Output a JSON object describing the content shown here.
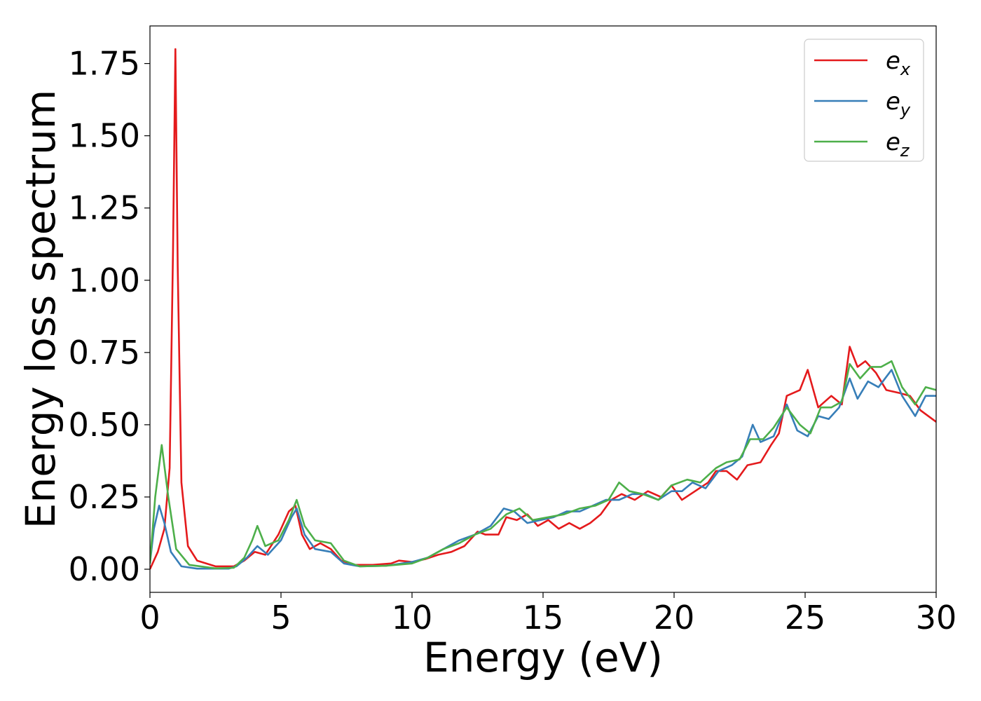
{
  "chart_data": {
    "type": "line",
    "xlabel": "Energy (eV)",
    "ylabel": "Energy loss spectrum",
    "xlim": [
      0,
      30
    ],
    "ylim": [
      -0.08,
      1.88
    ],
    "xticks": [
      0,
      5,
      10,
      15,
      20,
      25,
      30
    ],
    "xtick_labels": [
      "0",
      "5",
      "10",
      "15",
      "20",
      "25",
      "30"
    ],
    "yticks": [
      0.0,
      0.25,
      0.5,
      0.75,
      1.0,
      1.25,
      1.5,
      1.75
    ],
    "ytick_labels": [
      "0.00",
      "0.25",
      "0.50",
      "0.75",
      "1.00",
      "1.25",
      "1.50",
      "1.75"
    ],
    "grid": false,
    "legend_position": "top-right",
    "series": [
      {
        "name": "e",
        "subscript": "x",
        "color": "#e41a1c",
        "points": [
          [
            0,
            0.0
          ],
          [
            0.3,
            0.06
          ],
          [
            0.55,
            0.14
          ],
          [
            0.75,
            0.35
          ],
          [
            0.88,
            1.1
          ],
          [
            0.97,
            1.8
          ],
          [
            1.06,
            1.05
          ],
          [
            1.2,
            0.3
          ],
          [
            1.45,
            0.08
          ],
          [
            1.8,
            0.03
          ],
          [
            2.5,
            0.01
          ],
          [
            3.2,
            0.01
          ],
          [
            3.6,
            0.03
          ],
          [
            4.0,
            0.06
          ],
          [
            4.4,
            0.05
          ],
          [
            4.9,
            0.12
          ],
          [
            5.3,
            0.2
          ],
          [
            5.55,
            0.22
          ],
          [
            5.8,
            0.12
          ],
          [
            6.1,
            0.07
          ],
          [
            6.5,
            0.09
          ],
          [
            6.9,
            0.07
          ],
          [
            7.3,
            0.03
          ],
          [
            7.8,
            0.015
          ],
          [
            8.5,
            0.015
          ],
          [
            9.2,
            0.02
          ],
          [
            9.5,
            0.03
          ],
          [
            10.0,
            0.025
          ],
          [
            10.5,
            0.035
          ],
          [
            11.0,
            0.05
          ],
          [
            11.5,
            0.06
          ],
          [
            12.0,
            0.08
          ],
          [
            12.5,
            0.13
          ],
          [
            12.8,
            0.12
          ],
          [
            13.3,
            0.12
          ],
          [
            13.6,
            0.18
          ],
          [
            14.0,
            0.17
          ],
          [
            14.4,
            0.19
          ],
          [
            14.8,
            0.15
          ],
          [
            15.2,
            0.17
          ],
          [
            15.6,
            0.14
          ],
          [
            16.0,
            0.16
          ],
          [
            16.4,
            0.14
          ],
          [
            16.8,
            0.16
          ],
          [
            17.2,
            0.19
          ],
          [
            17.6,
            0.24
          ],
          [
            18.0,
            0.26
          ],
          [
            18.5,
            0.24
          ],
          [
            19.0,
            0.27
          ],
          [
            19.5,
            0.25
          ],
          [
            19.9,
            0.29
          ],
          [
            20.3,
            0.24
          ],
          [
            20.8,
            0.27
          ],
          [
            21.3,
            0.3
          ],
          [
            21.6,
            0.34
          ],
          [
            22.0,
            0.34
          ],
          [
            22.4,
            0.31
          ],
          [
            22.8,
            0.36
          ],
          [
            23.3,
            0.37
          ],
          [
            23.7,
            0.43
          ],
          [
            24.0,
            0.47
          ],
          [
            24.3,
            0.6
          ],
          [
            24.8,
            0.62
          ],
          [
            25.1,
            0.69
          ],
          [
            25.5,
            0.56
          ],
          [
            26.0,
            0.6
          ],
          [
            26.4,
            0.57
          ],
          [
            26.7,
            0.77
          ],
          [
            27.0,
            0.7
          ],
          [
            27.3,
            0.72
          ],
          [
            27.7,
            0.68
          ],
          [
            28.1,
            0.62
          ],
          [
            28.6,
            0.61
          ],
          [
            29.0,
            0.6
          ],
          [
            29.4,
            0.55
          ],
          [
            30.0,
            0.51
          ]
        ]
      },
      {
        "name": "e",
        "subscript": "y",
        "color": "#377eb8",
        "points": [
          [
            0,
            0.02
          ],
          [
            0.15,
            0.14
          ],
          [
            0.35,
            0.22
          ],
          [
            0.55,
            0.16
          ],
          [
            0.8,
            0.06
          ],
          [
            1.2,
            0.01
          ],
          [
            1.8,
            0.002
          ],
          [
            3.0,
            0.002
          ],
          [
            3.3,
            0.01
          ],
          [
            3.7,
            0.04
          ],
          [
            4.1,
            0.08
          ],
          [
            4.5,
            0.05
          ],
          [
            5.0,
            0.1
          ],
          [
            5.4,
            0.18
          ],
          [
            5.6,
            0.21
          ],
          [
            5.9,
            0.12
          ],
          [
            6.3,
            0.07
          ],
          [
            6.9,
            0.06
          ],
          [
            7.4,
            0.02
          ],
          [
            8.0,
            0.01
          ],
          [
            9.0,
            0.012
          ],
          [
            10.0,
            0.025
          ],
          [
            10.6,
            0.04
          ],
          [
            11.2,
            0.07
          ],
          [
            11.8,
            0.1
          ],
          [
            12.4,
            0.12
          ],
          [
            13.0,
            0.15
          ],
          [
            13.5,
            0.21
          ],
          [
            13.9,
            0.2
          ],
          [
            14.4,
            0.16
          ],
          [
            14.9,
            0.17
          ],
          [
            15.4,
            0.18
          ],
          [
            15.9,
            0.2
          ],
          [
            16.4,
            0.2
          ],
          [
            16.9,
            0.22
          ],
          [
            17.4,
            0.24
          ],
          [
            17.9,
            0.24
          ],
          [
            18.4,
            0.26
          ],
          [
            18.9,
            0.26
          ],
          [
            19.4,
            0.24
          ],
          [
            19.9,
            0.27
          ],
          [
            20.3,
            0.27
          ],
          [
            20.7,
            0.3
          ],
          [
            21.2,
            0.28
          ],
          [
            21.7,
            0.34
          ],
          [
            22.2,
            0.36
          ],
          [
            22.6,
            0.39
          ],
          [
            23.0,
            0.5
          ],
          [
            23.3,
            0.44
          ],
          [
            23.8,
            0.46
          ],
          [
            24.3,
            0.57
          ],
          [
            24.7,
            0.48
          ],
          [
            25.1,
            0.46
          ],
          [
            25.5,
            0.53
          ],
          [
            25.9,
            0.52
          ],
          [
            26.3,
            0.56
          ],
          [
            26.7,
            0.66
          ],
          [
            27.0,
            0.59
          ],
          [
            27.4,
            0.65
          ],
          [
            27.8,
            0.63
          ],
          [
            28.3,
            0.69
          ],
          [
            28.7,
            0.6
          ],
          [
            29.2,
            0.53
          ],
          [
            29.6,
            0.6
          ],
          [
            30.0,
            0.6
          ]
        ]
      },
      {
        "name": "e",
        "subscript": "z",
        "color": "#4daf4a",
        "points": [
          [
            0,
            0.02
          ],
          [
            0.2,
            0.25
          ],
          [
            0.45,
            0.43
          ],
          [
            0.7,
            0.25
          ],
          [
            1.0,
            0.07
          ],
          [
            1.5,
            0.015
          ],
          [
            2.5,
            0.003
          ],
          [
            3.2,
            0.005
          ],
          [
            3.6,
            0.04
          ],
          [
            3.9,
            0.1
          ],
          [
            4.1,
            0.15
          ],
          [
            4.4,
            0.08
          ],
          [
            4.9,
            0.1
          ],
          [
            5.3,
            0.17
          ],
          [
            5.6,
            0.24
          ],
          [
            5.9,
            0.15
          ],
          [
            6.3,
            0.1
          ],
          [
            6.9,
            0.09
          ],
          [
            7.4,
            0.03
          ],
          [
            8.0,
            0.01
          ],
          [
            9.0,
            0.012
          ],
          [
            10.0,
            0.02
          ],
          [
            10.6,
            0.04
          ],
          [
            11.2,
            0.07
          ],
          [
            11.8,
            0.09
          ],
          [
            12.4,
            0.12
          ],
          [
            13.0,
            0.14
          ],
          [
            13.6,
            0.19
          ],
          [
            14.1,
            0.21
          ],
          [
            14.6,
            0.17
          ],
          [
            15.2,
            0.18
          ],
          [
            15.8,
            0.19
          ],
          [
            16.4,
            0.21
          ],
          [
            17.0,
            0.22
          ],
          [
            17.5,
            0.24
          ],
          [
            17.9,
            0.3
          ],
          [
            18.3,
            0.27
          ],
          [
            18.8,
            0.26
          ],
          [
            19.4,
            0.24
          ],
          [
            19.9,
            0.29
          ],
          [
            20.5,
            0.31
          ],
          [
            21.0,
            0.3
          ],
          [
            21.6,
            0.35
          ],
          [
            22.0,
            0.37
          ],
          [
            22.5,
            0.38
          ],
          [
            22.9,
            0.45
          ],
          [
            23.4,
            0.45
          ],
          [
            23.8,
            0.49
          ],
          [
            24.3,
            0.56
          ],
          [
            24.8,
            0.5
          ],
          [
            25.2,
            0.47
          ],
          [
            25.6,
            0.56
          ],
          [
            26.0,
            0.56
          ],
          [
            26.4,
            0.58
          ],
          [
            26.7,
            0.71
          ],
          [
            27.1,
            0.66
          ],
          [
            27.5,
            0.7
          ],
          [
            27.9,
            0.7
          ],
          [
            28.3,
            0.72
          ],
          [
            28.7,
            0.63
          ],
          [
            29.2,
            0.57
          ],
          [
            29.6,
            0.63
          ],
          [
            30.0,
            0.62
          ]
        ]
      }
    ]
  }
}
